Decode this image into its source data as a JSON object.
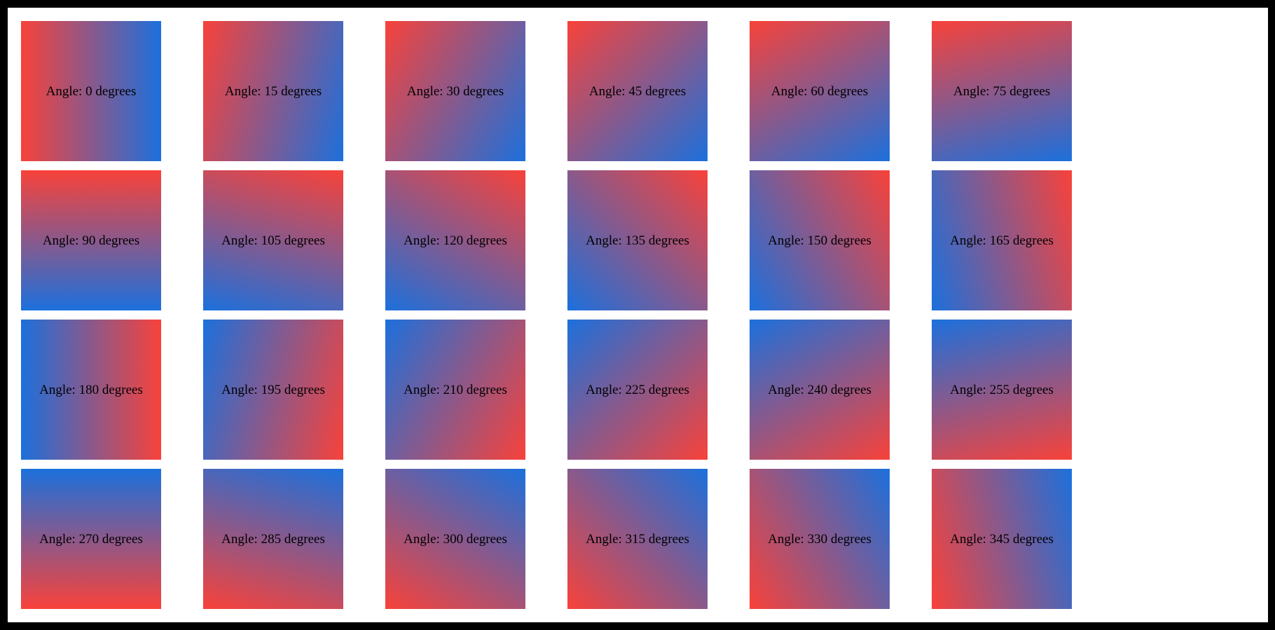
{
  "page": {
    "frame_color": "#000000",
    "background_color": "#ffffff"
  },
  "gradient": {
    "start_color": "#f8423a",
    "end_color": "#1c70dc",
    "start_color_name": "red",
    "end_color_name": "blue"
  },
  "tiles": [
    {
      "angle": 0,
      "label": "Angle: 0 degrees"
    },
    {
      "angle": 15,
      "label": "Angle: 15 degrees"
    },
    {
      "angle": 30,
      "label": "Angle: 30 degrees"
    },
    {
      "angle": 45,
      "label": "Angle: 45 degrees"
    },
    {
      "angle": 60,
      "label": "Angle: 60 degrees"
    },
    {
      "angle": 75,
      "label": "Angle: 75 degrees"
    },
    {
      "angle": 90,
      "label": "Angle: 90 degrees"
    },
    {
      "angle": 105,
      "label": "Angle: 105 degrees"
    },
    {
      "angle": 120,
      "label": "Angle: 120 degrees"
    },
    {
      "angle": 135,
      "label": "Angle: 135 degrees"
    },
    {
      "angle": 150,
      "label": "Angle: 150 degrees"
    },
    {
      "angle": 165,
      "label": "Angle: 165 degrees"
    },
    {
      "angle": 180,
      "label": "Angle: 180 degrees"
    },
    {
      "angle": 195,
      "label": "Angle: 195 degrees"
    },
    {
      "angle": 210,
      "label": "Angle: 210 degrees"
    },
    {
      "angle": 225,
      "label": "Angle: 225 degrees"
    },
    {
      "angle": 240,
      "label": "Angle: 240 degrees"
    },
    {
      "angle": 255,
      "label": "Angle: 255 degrees"
    },
    {
      "angle": 270,
      "label": "Angle: 270 degrees"
    },
    {
      "angle": 285,
      "label": "Angle: 285 degrees"
    },
    {
      "angle": 300,
      "label": "Angle: 300 degrees"
    },
    {
      "angle": 315,
      "label": "Angle: 315 degrees"
    },
    {
      "angle": 330,
      "label": "Angle: 330 degrees"
    },
    {
      "angle": 345,
      "label": "Angle: 345 degrees"
    }
  ]
}
